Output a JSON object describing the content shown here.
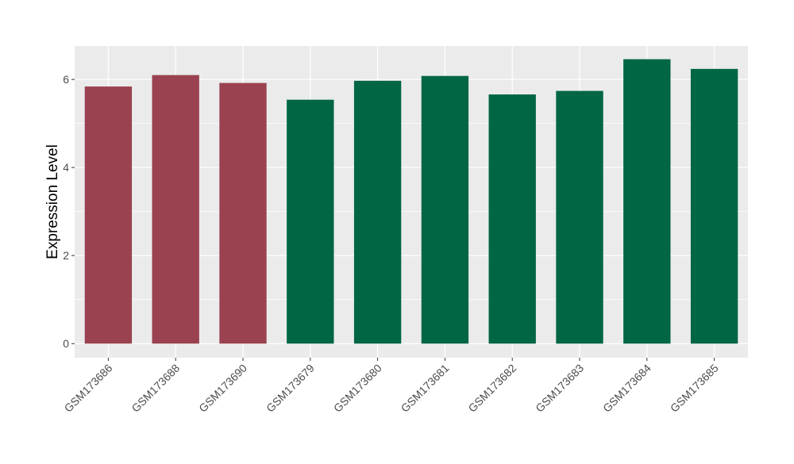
{
  "chart_data": {
    "type": "bar",
    "title": "",
    "xlabel": "",
    "ylabel": "Expression Level",
    "categories": [
      "GSM173686",
      "GSM173688",
      "GSM173690",
      "GSM173679",
      "GSM173680",
      "GSM173681",
      "GSM173682",
      "GSM173683",
      "GSM173684",
      "GSM173685"
    ],
    "values": [
      5.84,
      6.1,
      5.92,
      5.54,
      5.97,
      6.08,
      5.66,
      5.74,
      6.46,
      6.24
    ],
    "groups": [
      "a",
      "a",
      "a",
      "b",
      "b",
      "b",
      "b",
      "b",
      "b",
      "b"
    ],
    "colors": {
      "a": "#9A4250",
      "b": "#006644"
    },
    "ylim": [
      -0.32,
      6.76
    ],
    "yticks": [
      0,
      2,
      4,
      6
    ],
    "grid": true,
    "panel_background": "#EBEBEB",
    "legend": "none"
  }
}
